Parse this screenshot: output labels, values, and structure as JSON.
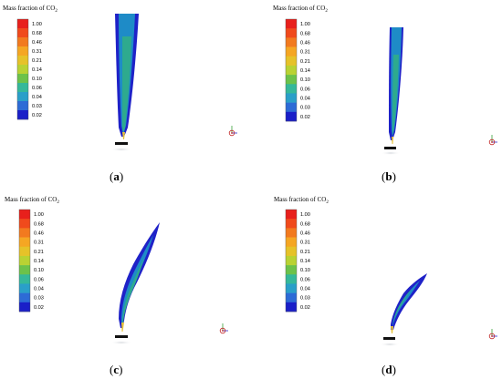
{
  "colormap": {
    "title_prefix": "Mass fraction of CO",
    "title_subscript": "2",
    "values": [
      "1.00",
      "0.68",
      "0.46",
      "0.31",
      "0.21",
      "0.14",
      "0.10",
      "0.06",
      "0.04",
      "0.03",
      "0.02"
    ],
    "colors": [
      "#e8201c",
      "#f04a1c",
      "#f27a1f",
      "#f5a623",
      "#e6c229",
      "#b9d233",
      "#6cc24a",
      "#35b89a",
      "#2a9fc9",
      "#2d6bd6",
      "#1a1fc8"
    ]
  },
  "flame_colors": {
    "outer": "#1f22c8",
    "mid": "#1e8bc7",
    "core": "#2eaa8e",
    "tip": "#e7c23a"
  },
  "panels": [
    {
      "label": "a"
    },
    {
      "label": "b"
    },
    {
      "label": "c"
    },
    {
      "label": "d"
    }
  ]
}
